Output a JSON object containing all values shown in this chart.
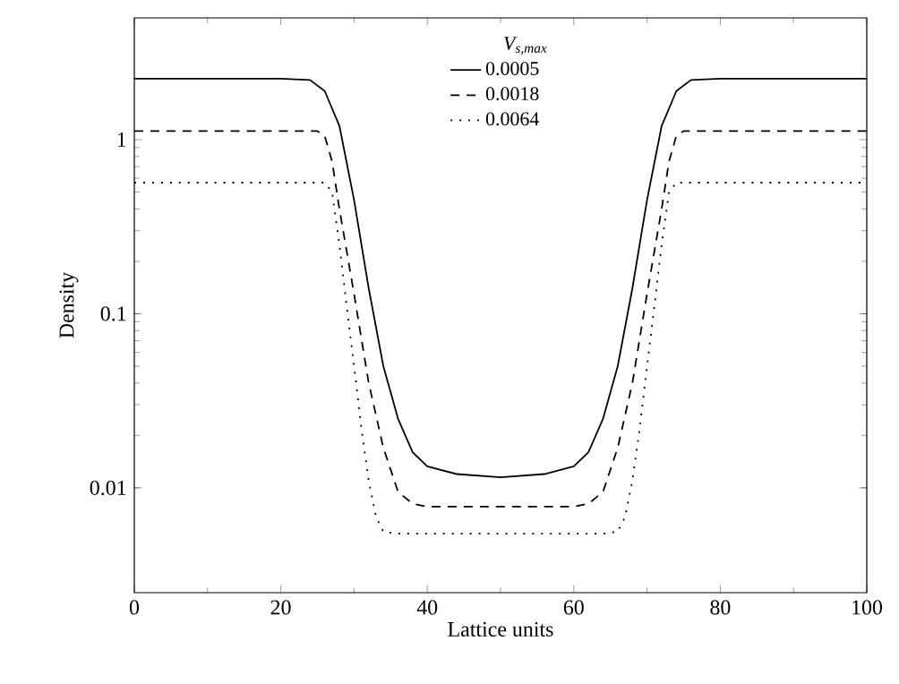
{
  "chart_data": {
    "type": "line",
    "xlabel": "Lattice units",
    "ylabel": "Density",
    "legend_title": "V$_{s,max}$",
    "legend": "top",
    "log": "y",
    "xlim": [
      0,
      100
    ],
    "xticks": [
      0,
      20,
      40,
      60,
      80,
      100
    ],
    "ylim": [
      0.0025,
      5
    ],
    "yticks": [
      0.01,
      0.1,
      1
    ],
    "series": [
      {
        "name": "0.0005",
        "color": "#000000",
        "line_style": "solid",
        "x": [
          0,
          20,
          24,
          26,
          28,
          30,
          32,
          34,
          36,
          38,
          40,
          44,
          50,
          56,
          60,
          62,
          64,
          66,
          68,
          70,
          72,
          74,
          76,
          80,
          100
        ],
        "values": [
          2.24,
          2.24,
          2.2,
          1.9,
          1.2,
          0.45,
          0.14,
          0.05,
          0.025,
          0.016,
          0.0133,
          0.012,
          0.0115,
          0.012,
          0.0133,
          0.016,
          0.025,
          0.05,
          0.14,
          0.45,
          1.2,
          1.9,
          2.2,
          2.24,
          2.24
        ]
      },
      {
        "name": "0.0018",
        "color": "#000000",
        "line_style": "dashed",
        "x": [
          0,
          25,
          26,
          27,
          28,
          30,
          32,
          34,
          36,
          38,
          40,
          50,
          60,
          62,
          64,
          66,
          68,
          70,
          72,
          73,
          74,
          75,
          100
        ],
        "values": [
          1.12,
          1.12,
          1.05,
          0.75,
          0.4,
          0.13,
          0.04,
          0.017,
          0.0095,
          0.0081,
          0.0078,
          0.0078,
          0.0078,
          0.0081,
          0.0095,
          0.017,
          0.04,
          0.13,
          0.4,
          0.75,
          1.05,
          1.12,
          1.12
        ]
      },
      {
        "name": "0.0064",
        "color": "#000000",
        "line_style": "dotted",
        "x": [
          0,
          26,
          27,
          28,
          29,
          30,
          31,
          32,
          33,
          34,
          36,
          50,
          64,
          66,
          67,
          68,
          69,
          70,
          71,
          72,
          73,
          74,
          100
        ],
        "values": [
          0.566,
          0.566,
          0.5,
          0.25,
          0.11,
          0.05,
          0.022,
          0.011,
          0.0068,
          0.0056,
          0.00545,
          0.00545,
          0.00545,
          0.0056,
          0.0068,
          0.011,
          0.022,
          0.05,
          0.11,
          0.25,
          0.5,
          0.566,
          0.566
        ]
      }
    ]
  }
}
